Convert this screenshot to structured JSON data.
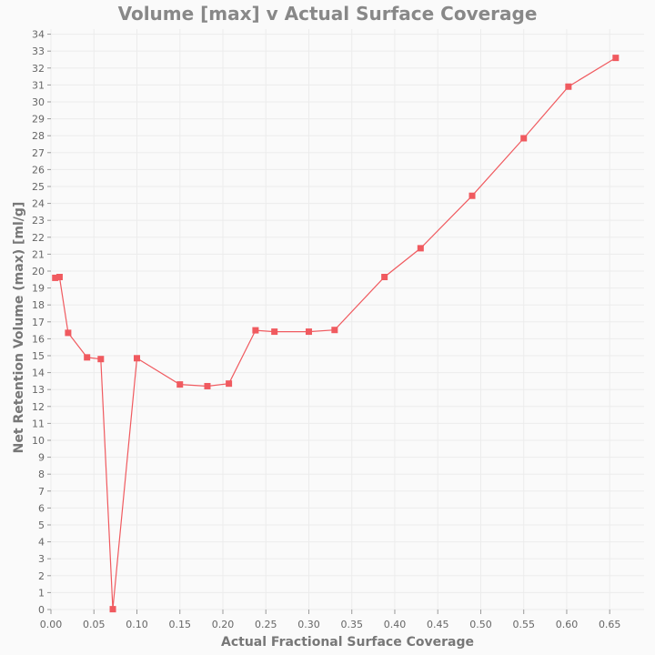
{
  "chart_data": {
    "type": "line",
    "title": "Volume [max] v Actual Surface Coverage",
    "xlabel": "Actual Fractional Surface Coverage",
    "ylabel": "Net Retention Volume (max) [ml/g]",
    "xlim": [
      0,
      0.69
    ],
    "ylim": [
      0,
      34.3
    ],
    "xticks": [
      0.0,
      0.05,
      0.1,
      0.15,
      0.2,
      0.25,
      0.3,
      0.35,
      0.4,
      0.45,
      0.5,
      0.55,
      0.6,
      0.65
    ],
    "xtick_labels": [
      "0.00",
      "0.05",
      "0.10",
      "0.15",
      "0.20",
      "0.25",
      "0.30",
      "0.35",
      "0.40",
      "0.45",
      "0.50",
      "0.55",
      "0.60",
      "0.65"
    ],
    "yticks": [
      0,
      1,
      2,
      3,
      4,
      5,
      6,
      7,
      8,
      9,
      10,
      11,
      12,
      13,
      14,
      15,
      16,
      17,
      18,
      19,
      20,
      21,
      22,
      23,
      24,
      25,
      26,
      27,
      28,
      29,
      30,
      31,
      32,
      33,
      34
    ],
    "ytick_labels": [
      "0",
      "1",
      "2",
      "3",
      "4",
      "5",
      "6",
      "7",
      "8",
      "9",
      "10",
      "11",
      "12",
      "13",
      "14",
      "15",
      "16",
      "17",
      "18",
      "19",
      "20",
      "21",
      "22",
      "23",
      "24",
      "25",
      "26",
      "27",
      "28",
      "29",
      "30",
      "31",
      "32",
      "33",
      "34"
    ],
    "grid": true,
    "series": [
      {
        "color": "#f05a5f",
        "marker": "square",
        "x": [
          0.005,
          0.01,
          0.02,
          0.042,
          0.058,
          0.072,
          0.1,
          0.15,
          0.182,
          0.207,
          0.238,
          0.26,
          0.3,
          0.33,
          0.388,
          0.43,
          0.49,
          0.55,
          0.602,
          0.657
        ],
        "y": [
          19.6,
          19.65,
          16.35,
          14.9,
          14.8,
          0.02,
          14.85,
          13.3,
          13.2,
          13.35,
          16.5,
          16.42,
          16.42,
          16.52,
          19.65,
          21.35,
          24.45,
          27.85,
          30.9,
          32.6
        ]
      }
    ]
  }
}
